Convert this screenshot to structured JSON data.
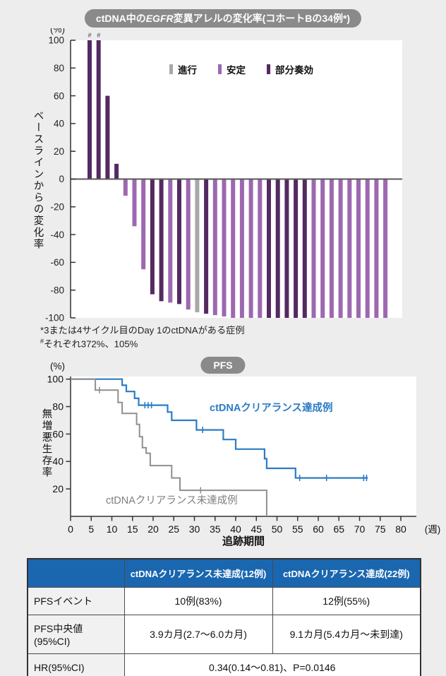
{
  "page": {
    "bg": "#ededed"
  },
  "waterfall": {
    "title_pre": "ctDNA中の",
    "title_italic": "EGFR",
    "title_post": "変異アレルの変化率(コホートBの34例*)",
    "unit": "(%)",
    "ylabel": "ベースラインからの変化率",
    "legend": [
      {
        "label": "進行",
        "color": "#a8a8a8"
      },
      {
        "label": "安定",
        "color": "#9d68b0"
      },
      {
        "label": "部分奏効",
        "color": "#542a61"
      }
    ],
    "footnote1": "*3または4サイクル目のDay 1のctDNAがある症例",
    "footnote2_marker": "#",
    "footnote2_text": "それぞれ372%、105%"
  },
  "km_section": {
    "title": "PFS",
    "unit": "(%)",
    "ylabel": "無増悪生存率",
    "xlabel": "追跡期間",
    "x_unit": "(週)"
  },
  "chart_data": [
    {
      "type": "bar",
      "title": "ctDNA中のEGFR変異アレルの変化率(コホートBの34例*)",
      "ylabel": "ベースラインからの変化率 (%)",
      "ylim": [
        -100,
        100
      ],
      "ytick_step": 20,
      "n": 34,
      "values": [
        100,
        100,
        60,
        11,
        -12,
        -34,
        -65,
        -83,
        -88,
        -89,
        -90,
        -94,
        -96,
        -97,
        -98,
        -99,
        -100,
        -100,
        -100,
        -100,
        -100,
        -100,
        -100,
        -100,
        -100,
        -100,
        -100,
        -100,
        -100,
        -100,
        -100,
        -100,
        -100,
        -100
      ],
      "responses": [
        "部分奏効",
        "部分奏効",
        "部分奏効",
        "部分奏効",
        "安定",
        "安定",
        "安定",
        "部分奏効",
        "部分奏効",
        "安定",
        "部分奏効",
        "安定",
        "進行",
        "部分奏効",
        "安定",
        "安定",
        "安定",
        "安定",
        "安定",
        "安定",
        "部分奏効",
        "部分奏効",
        "部分奏効",
        "部分奏効",
        "部分奏効",
        "安定",
        "安定",
        "安定",
        "安定",
        "安定",
        "安定",
        "安定",
        "安定",
        "安定"
      ],
      "capped": {
        "indices": [
          0,
          1
        ],
        "symbol": "#",
        "true_values": [
          372,
          105
        ]
      },
      "grid": false,
      "legend_position": "top-inside"
    },
    {
      "type": "line",
      "title": "PFS",
      "xlabel": "追跡期間 (週)",
      "ylabel": "無増悪生存率 (%)",
      "xlim": [
        0,
        80
      ],
      "xtick_step": 5,
      "ylim": [
        0,
        100
      ],
      "yticks": [
        20,
        40,
        60,
        80,
        100
      ],
      "grid": false,
      "legend_position": "inline-labels",
      "series": [
        {
          "name": "ctDNAクリアランス達成例",
          "color": "#2b7cc5",
          "points": [
            [
              0,
              100
            ],
            [
              12.5,
              100
            ],
            [
              12.5,
              95.5
            ],
            [
              13.5,
              95.5
            ],
            [
              13.5,
              91
            ],
            [
              15.5,
              91
            ],
            [
              15.5,
              86
            ],
            [
              16.5,
              86
            ],
            [
              16.5,
              81
            ],
            [
              23.5,
              81
            ],
            [
              23.5,
              76
            ],
            [
              24.5,
              76
            ],
            [
              24.5,
              70
            ],
            [
              30.5,
              70
            ],
            [
              30.5,
              63
            ],
            [
              37,
              63
            ],
            [
              37,
              56
            ],
            [
              40,
              56
            ],
            [
              40,
              49
            ],
            [
              47,
              49
            ],
            [
              47,
              42
            ],
            [
              47.5,
              42
            ],
            [
              47.5,
              35
            ],
            [
              54.5,
              35
            ],
            [
              54.5,
              28
            ],
            [
              72,
              28
            ]
          ],
          "censors": [
            [
              18,
              81
            ],
            [
              18.8,
              81
            ],
            [
              19.6,
              81
            ],
            [
              32,
              63
            ],
            [
              55.5,
              28
            ],
            [
              62,
              28
            ],
            [
              71,
              28
            ],
            [
              71.7,
              28
            ]
          ]
        },
        {
          "name": "ctDNAクリアランス未達成例",
          "color": "#8f8f8f",
          "points": [
            [
              0,
              100
            ],
            [
              6,
              100
            ],
            [
              6,
              92
            ],
            [
              11.5,
              92
            ],
            [
              11.5,
              83
            ],
            [
              12.5,
              83
            ],
            [
              12.5,
              75
            ],
            [
              16,
              75
            ],
            [
              16,
              67
            ],
            [
              16.7,
              67
            ],
            [
              16.7,
              58
            ],
            [
              17.4,
              58
            ],
            [
              17.4,
              50
            ],
            [
              18.3,
              50
            ],
            [
              18.3,
              46
            ],
            [
              19.3,
              46
            ],
            [
              19.3,
              37
            ],
            [
              24.5,
              37
            ],
            [
              24.5,
              28
            ],
            [
              26.5,
              28
            ],
            [
              26.5,
              19
            ],
            [
              47.5,
              19
            ],
            [
              47.5,
              0
            ]
          ],
          "censors": [
            [
              7,
              92
            ],
            [
              31.5,
              19
            ]
          ]
        }
      ]
    }
  ],
  "table": {
    "header_bg": "#1a67b0",
    "columns": [
      "",
      "ctDNAクリアランス未達成(12例)",
      "ctDNAクリアランス達成(22例)"
    ],
    "rows": [
      {
        "label": "PFSイベント",
        "cells": [
          "10例(83%)",
          "12例(55%)"
        ]
      },
      {
        "label": "PFS中央値(95%CI)",
        "cells": [
          "3.9カ月(2.7〜6.0カ月)",
          "9.1カ月(5.4カ月〜未到達)"
        ]
      },
      {
        "label": "HR(95%CI)",
        "cells": [
          "0.34(0.14〜0.81)、P=0.0146"
        ],
        "span": 2
      }
    ]
  }
}
